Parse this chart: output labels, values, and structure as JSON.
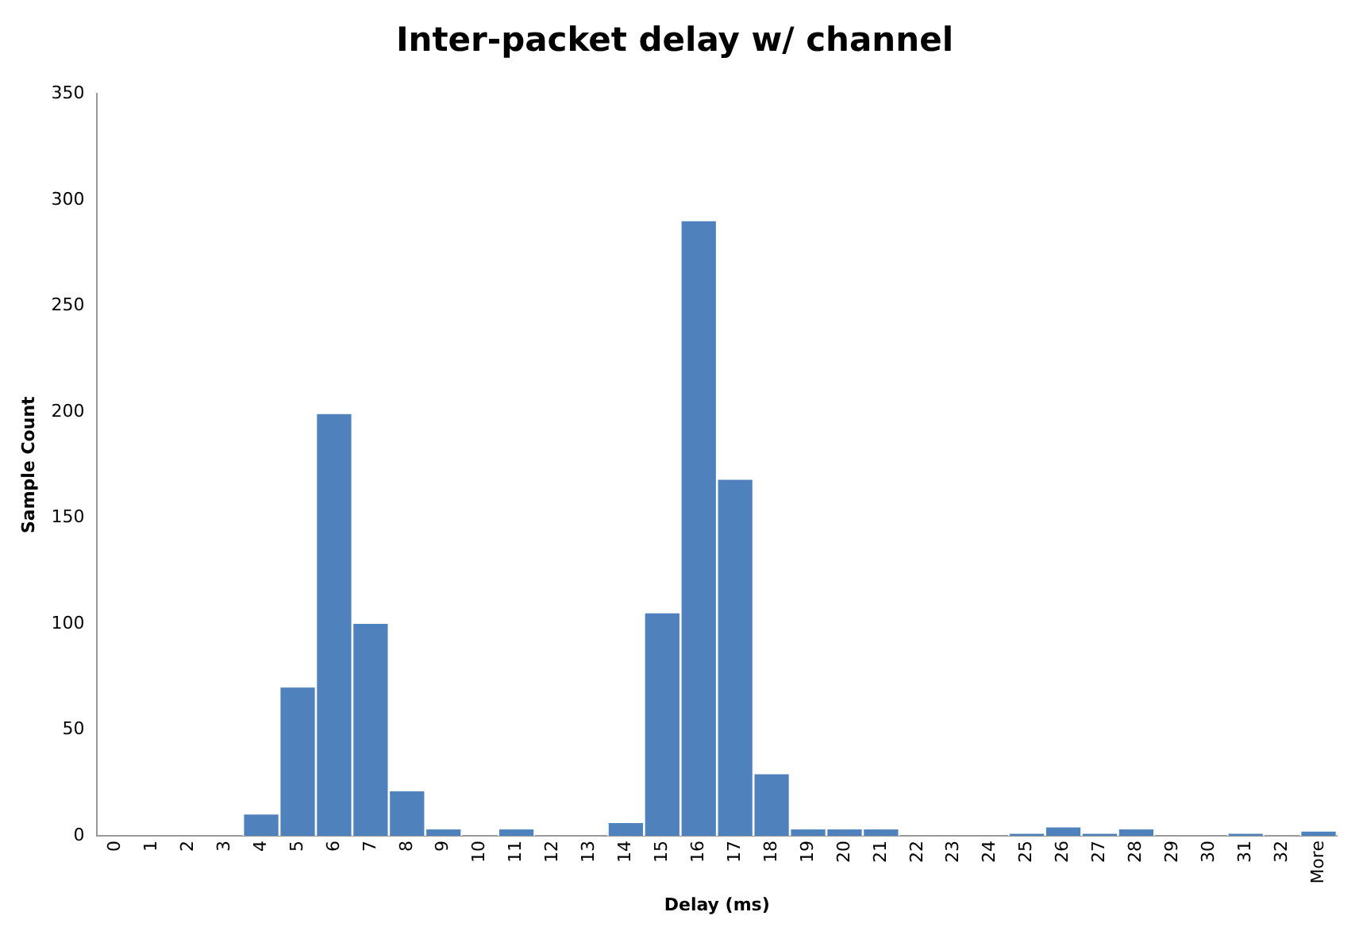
{
  "chart_data": {
    "type": "bar",
    "title": "Inter-packet delay w/ channel",
    "xlabel": "Delay (ms)",
    "ylabel": "Sample Count",
    "categories": [
      "0",
      "1",
      "2",
      "3",
      "4",
      "5",
      "6",
      "7",
      "8",
      "9",
      "10",
      "11",
      "12",
      "13",
      "14",
      "15",
      "16",
      "17",
      "18",
      "19",
      "20",
      "21",
      "22",
      "23",
      "24",
      "25",
      "26",
      "27",
      "28",
      "29",
      "30",
      "31",
      "32",
      "More"
    ],
    "values": [
      0,
      0,
      0,
      0,
      10,
      70,
      199,
      100,
      21,
      3,
      0,
      3,
      0,
      0,
      6,
      105,
      290,
      168,
      29,
      3,
      3,
      3,
      0,
      0,
      0,
      1,
      4,
      1,
      3,
      0,
      0,
      1,
      0,
      2
    ],
    "color": "#4f81bd",
    "ylim": [
      0,
      350
    ],
    "yticks": [
      0,
      50,
      100,
      150,
      200,
      250,
      300,
      350
    ],
    "grid": false,
    "legend": false
  }
}
